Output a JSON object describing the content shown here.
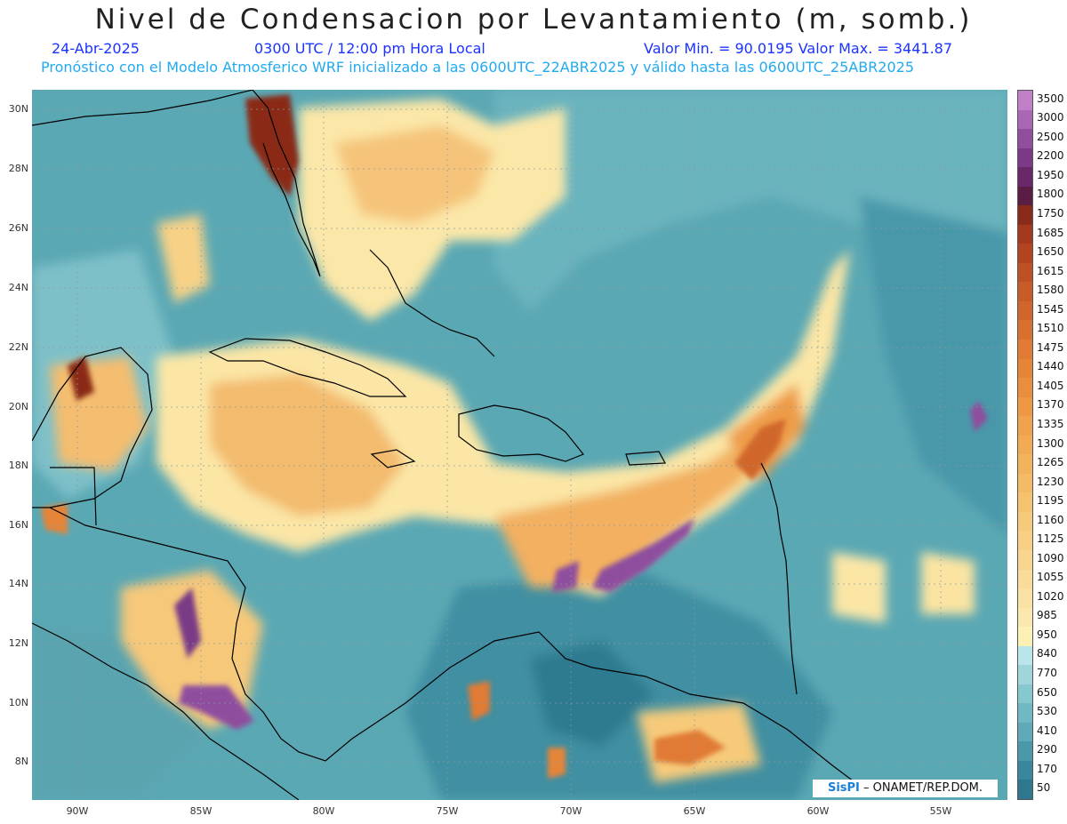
{
  "header": {
    "title": "Nivel de Condensacion por Levantamiento (m, somb.)",
    "date": "24-Abr-2025",
    "time": "0300 UTC / 12:00 pm Hora Local",
    "min_max": "Valor Min. = 90.0195  Valor Max. = 3441.87",
    "model_line": "Pronóstico con el Modelo Atmosferico WRF inicializado a las 0600UTC_22ABR2025 y válido hasta las  0600UTC_25ABR2025"
  },
  "credit": {
    "brand": "SisPI",
    "text": "– ONAMET/REP.DOM."
  },
  "axes": {
    "lat_labels": [
      "30N",
      "28N",
      "26N",
      "24N",
      "22N",
      "20N",
      "18N",
      "16N",
      "14N",
      "12N",
      "10N",
      "8N"
    ],
    "lon_labels": [
      "90W",
      "85W",
      "80W",
      "75W",
      "70W",
      "65W",
      "60W",
      "55W"
    ]
  },
  "legend": {
    "levels": [
      "3500",
      "3000",
      "2500",
      "2200",
      "1950",
      "1800",
      "1750",
      "1685",
      "1650",
      "1615",
      "1580",
      "1545",
      "1510",
      "1475",
      "1440",
      "1405",
      "1370",
      "1335",
      "1300",
      "1265",
      "1230",
      "1195",
      "1160",
      "1125",
      "1090",
      "1055",
      "1020",
      "985",
      "950",
      "840",
      "770",
      "650",
      "530",
      "410",
      "290",
      "170",
      "50"
    ],
    "colors": [
      "#c080c8",
      "#a868b4",
      "#8f4e9e",
      "#7a3a86",
      "#68286a",
      "#5a1e44",
      "#8a2a18",
      "#a3381c",
      "#b24420",
      "#bd5024",
      "#c85c28",
      "#d0662c",
      "#d87030",
      "#e07a34",
      "#e68438",
      "#ea8e3e",
      "#ee9844",
      "#f0a24c",
      "#f2aa54",
      "#f3b25c",
      "#f4ba66",
      "#f5c270",
      "#f6ca7a",
      "#f7d084",
      "#f8d690",
      "#f9dc9a",
      "#fae2a4",
      "#fbe8ae",
      "#fdf0b4",
      "#b8e6ea",
      "#9ed6dc",
      "#86c8d0",
      "#70b8c4",
      "#5eaab8",
      "#4a98aa",
      "#3a869c",
      "#2e788e"
    ]
  },
  "features": {
    "countries": [
      "Cuba",
      "Jamaica",
      "Hispaniola",
      "Puerto Rico",
      "Florida",
      "Yucatán",
      "Centroamérica",
      "Venezuela",
      "Colombia"
    ]
  }
}
